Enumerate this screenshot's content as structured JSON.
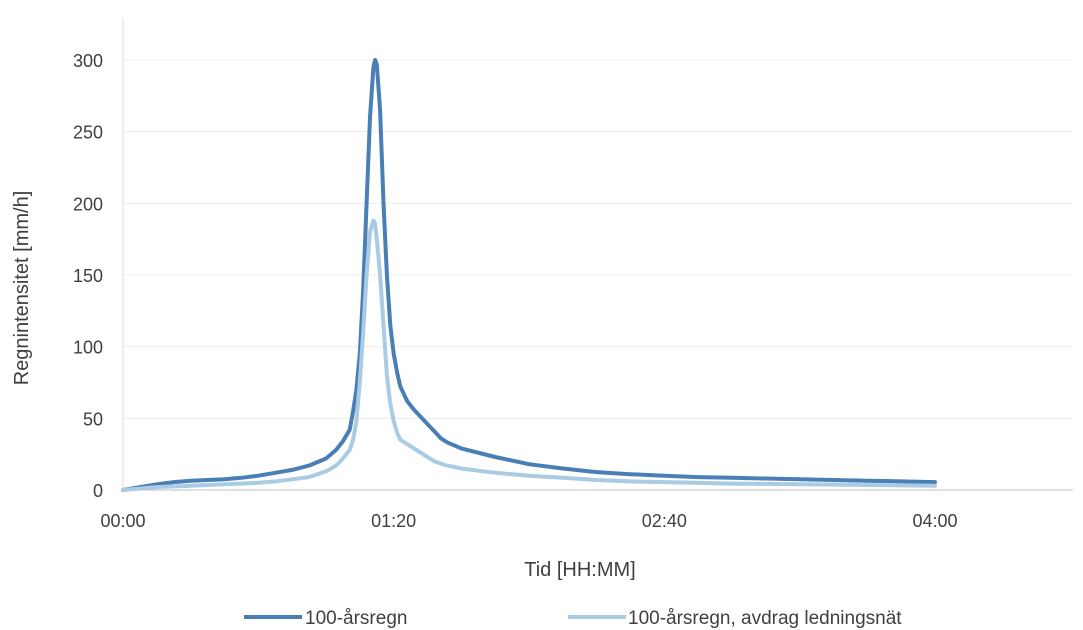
{
  "chart_data": {
    "type": "line",
    "xlabel": "Tid [HH:MM]",
    "ylabel": "Regnintensitet [mm/h]",
    "xlim": [
      0,
      300
    ],
    "ylim": [
      0,
      300
    ],
    "x_ticks": [
      {
        "value": 0,
        "label": "00:00"
      },
      {
        "value": 80,
        "label": "01:20"
      },
      {
        "value": 160,
        "label": "02:40"
      },
      {
        "value": 240,
        "label": "04:00"
      }
    ],
    "y_ticks": [
      0,
      50,
      100,
      150,
      200,
      250,
      300
    ],
    "grid": "horizontal",
    "legend": "bottom",
    "series": [
      {
        "name": "100-årsregn",
        "color": "#4a7fb5",
        "points": [
          [
            0,
            0
          ],
          [
            5,
            2
          ],
          [
            10,
            4
          ],
          [
            15,
            5.5
          ],
          [
            20,
            6.5
          ],
          [
            25,
            7
          ],
          [
            30,
            7.5
          ],
          [
            35,
            8.5
          ],
          [
            40,
            10
          ],
          [
            45,
            12
          ],
          [
            50,
            14
          ],
          [
            55,
            17
          ],
          [
            60,
            22
          ],
          [
            63,
            28
          ],
          [
            65,
            34
          ],
          [
            67,
            42
          ],
          [
            68,
            55
          ],
          [
            69,
            70
          ],
          [
            70,
            95
          ],
          [
            71,
            140
          ],
          [
            72,
            200
          ],
          [
            73,
            260
          ],
          [
            74,
            295
          ],
          [
            74.5,
            300
          ],
          [
            75,
            297
          ],
          [
            76,
            265
          ],
          [
            77,
            200
          ],
          [
            78,
            150
          ],
          [
            79,
            115
          ],
          [
            80,
            95
          ],
          [
            81,
            82
          ],
          [
            82,
            72
          ],
          [
            84,
            62
          ],
          [
            86,
            56
          ],
          [
            88,
            51
          ],
          [
            90,
            46
          ],
          [
            92,
            41
          ],
          [
            94,
            36
          ],
          [
            96,
            33
          ],
          [
            100,
            29
          ],
          [
            110,
            23
          ],
          [
            120,
            18
          ],
          [
            130,
            15
          ],
          [
            140,
            12.5
          ],
          [
            150,
            11
          ],
          [
            160,
            10
          ],
          [
            170,
            9
          ],
          [
            180,
            8.5
          ],
          [
            190,
            8
          ],
          [
            200,
            7.5
          ],
          [
            210,
            7
          ],
          [
            220,
            6.5
          ],
          [
            230,
            6
          ],
          [
            240,
            5.5
          ]
        ]
      },
      {
        "name": "100-årsregn, avdrag ledningsnät",
        "color": "#a9cbe3",
        "points": [
          [
            0,
            0
          ],
          [
            10,
            2
          ],
          [
            20,
            3
          ],
          [
            30,
            4
          ],
          [
            40,
            5
          ],
          [
            45,
            6
          ],
          [
            50,
            7.5
          ],
          [
            55,
            9
          ],
          [
            60,
            13
          ],
          [
            63,
            17
          ],
          [
            65,
            22
          ],
          [
            67,
            28
          ],
          [
            68,
            35
          ],
          [
            69,
            48
          ],
          [
            70,
            75
          ],
          [
            71,
            110
          ],
          [
            72,
            150
          ],
          [
            73,
            180
          ],
          [
            74,
            188
          ],
          [
            74.5,
            186
          ],
          [
            75,
            175
          ],
          [
            76,
            150
          ],
          [
            77,
            115
          ],
          [
            78,
            80
          ],
          [
            79,
            60
          ],
          [
            80,
            48
          ],
          [
            81,
            40
          ],
          [
            82,
            35
          ],
          [
            84,
            32
          ],
          [
            86,
            29
          ],
          [
            88,
            26
          ],
          [
            90,
            23
          ],
          [
            92,
            20
          ],
          [
            95,
            17.5
          ],
          [
            100,
            15
          ],
          [
            110,
            12
          ],
          [
            120,
            10
          ],
          [
            130,
            8.5
          ],
          [
            140,
            7
          ],
          [
            150,
            6
          ],
          [
            160,
            5.5
          ],
          [
            180,
            4.5
          ],
          [
            200,
            4
          ],
          [
            220,
            3.5
          ],
          [
            240,
            3
          ]
        ]
      }
    ]
  }
}
